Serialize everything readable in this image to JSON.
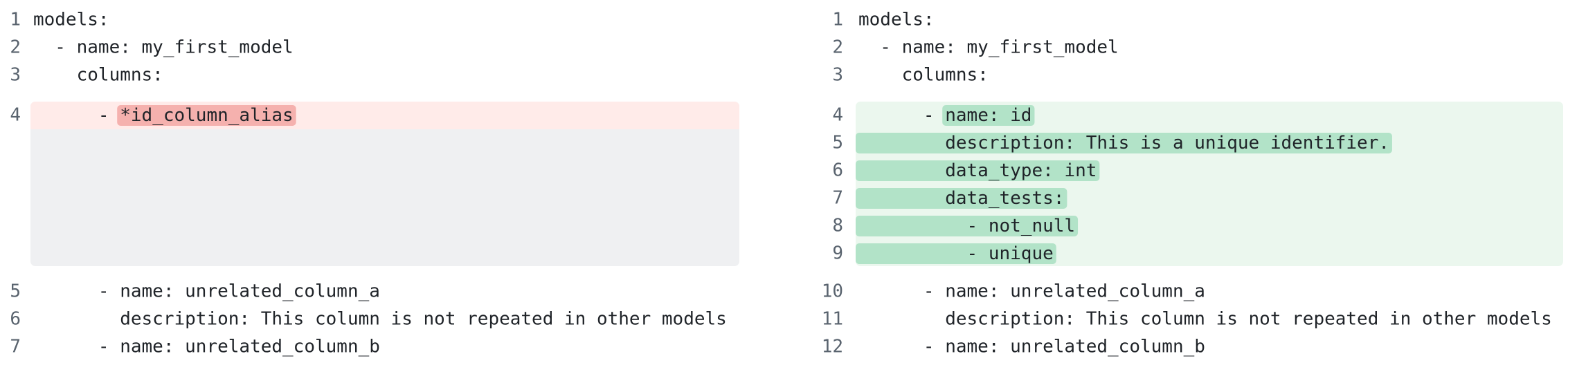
{
  "left": {
    "before": [
      {
        "number": "1",
        "text": "models:"
      },
      {
        "number": "2",
        "text": "  - name: my_first_model"
      },
      {
        "number": "3",
        "text": "    columns:"
      }
    ],
    "removed": [
      {
        "number": "4",
        "prefix": "      - ",
        "changed": "*id_column_alias"
      }
    ],
    "after": [
      {
        "number": "5",
        "text": "      - name: unrelated_column_a"
      },
      {
        "number": "6",
        "text": "        description: This column is not repeated in other models"
      },
      {
        "number": "7",
        "text": "      - name: unrelated_column_b"
      }
    ]
  },
  "right": {
    "before": [
      {
        "number": "1",
        "text": "models:"
      },
      {
        "number": "2",
        "text": "  - name: my_first_model"
      },
      {
        "number": "3",
        "text": "    columns:"
      }
    ],
    "added": [
      {
        "number": "4",
        "prefix": "      - ",
        "changed": "name: id"
      },
      {
        "number": "5",
        "prefix": "",
        "changed": "        description: This is a unique identifier."
      },
      {
        "number": "6",
        "prefix": "",
        "changed": "        data_type: int"
      },
      {
        "number": "7",
        "prefix": "",
        "changed": "        data_tests:"
      },
      {
        "number": "8",
        "prefix": "",
        "changed": "          - not_null"
      },
      {
        "number": "9",
        "prefix": "",
        "changed": "          - unique"
      }
    ],
    "after": [
      {
        "number": "10",
        "text": "      - name: unrelated_column_a"
      },
      {
        "number": "11",
        "text": "        description: This column is not repeated in other models"
      },
      {
        "number": "12",
        "text": "      - name: unrelated_column_b"
      }
    ]
  }
}
